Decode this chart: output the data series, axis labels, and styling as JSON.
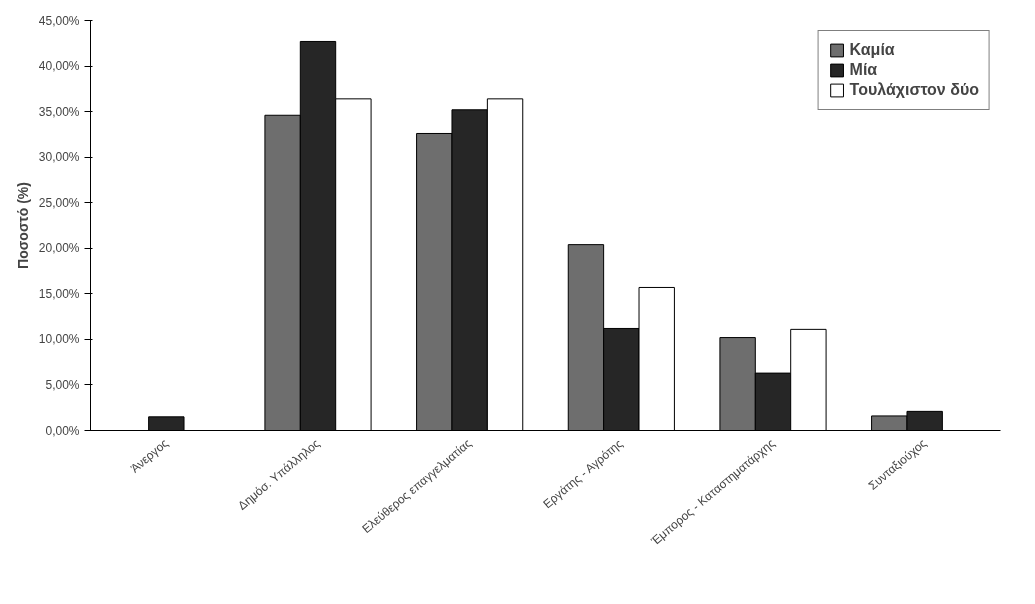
{
  "chart_data": {
    "type": "bar",
    "ylabel": "Ποσοστό (%)",
    "categories": [
      "Άνεργος",
      "Δημόσ. Υπάλληλος",
      "Ελεύθερος επαγγελματίας",
      "Εργάτης - Αγρότης",
      "Έμπορος - Καταστηματάρχης",
      "Συνταξιούχος"
    ],
    "series": [
      {
        "name": "Καμία",
        "color": "#6e6e6e",
        "values": [
          0,
          34.6,
          32.6,
          20.4,
          10.2,
          1.6
        ]
      },
      {
        "name": "Μία",
        "color": "#262626",
        "values": [
          1.5,
          42.7,
          35.2,
          11.2,
          6.3,
          2.1
        ]
      },
      {
        "name": "Τουλάχιστον δύο",
        "color": "#ffffff",
        "values": [
          0,
          36.4,
          36.4,
          15.7,
          11.1,
          0
        ]
      }
    ],
    "ylim": [
      0,
      45
    ],
    "yticks": [
      {
        "value": 0,
        "label": "0,00%"
      },
      {
        "value": 5,
        "label": "5,00%"
      },
      {
        "value": 10,
        "label": "10,00%"
      },
      {
        "value": 15,
        "label": "15,00%"
      },
      {
        "value": 20,
        "label": "20,00%"
      },
      {
        "value": 25,
        "label": "25,00%"
      },
      {
        "value": 30,
        "label": "30,00%"
      },
      {
        "value": 35,
        "label": "35,00%"
      },
      {
        "value": 40,
        "label": "40,00%"
      },
      {
        "value": 45,
        "label": "45,00%"
      }
    ],
    "grid": false,
    "legend": "top right"
  }
}
